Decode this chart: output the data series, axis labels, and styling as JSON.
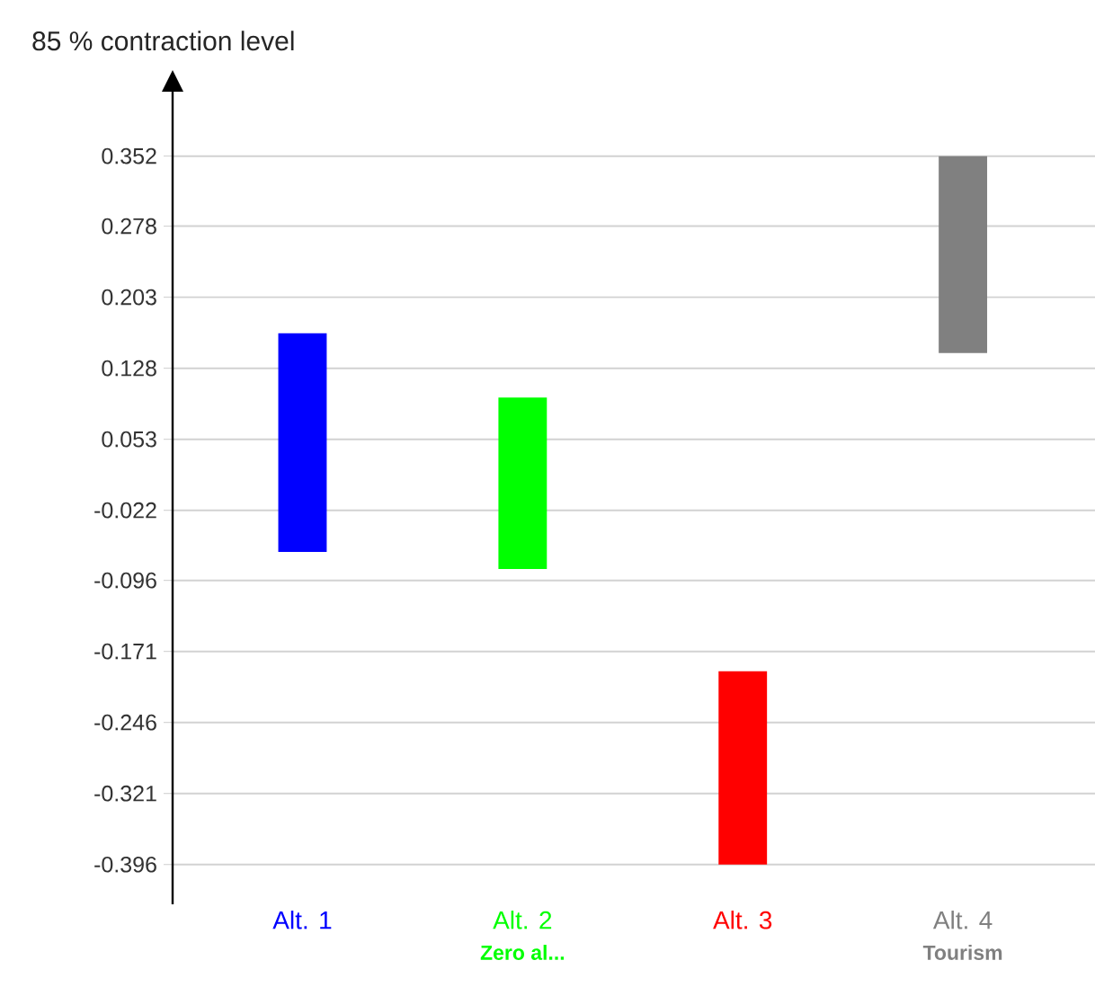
{
  "chart_data": {
    "type": "bar",
    "ylabel": "85 % contraction level",
    "categories": [
      "Alt. 1",
      "Alt. 2",
      "Alt. 3",
      "Alt. 4"
    ],
    "base": [
      -0.066,
      -0.084,
      -0.396,
      0.144
    ],
    "values": [
      0.231,
      0.181,
      0.204,
      0.208
    ],
    "colors": [
      "#0000ff",
      "#00ff00",
      "#ff0000",
      "#808080"
    ],
    "ylim": [
      -0.438,
      0.42
    ],
    "yticks": [
      0.352,
      0.278,
      0.203,
      0.128,
      0.053,
      -0.022,
      -0.096,
      -0.171,
      -0.246,
      -0.321,
      -0.396
    ],
    "grid": "y",
    "annotations": [
      "Zero al...",
      "Tourism"
    ]
  }
}
